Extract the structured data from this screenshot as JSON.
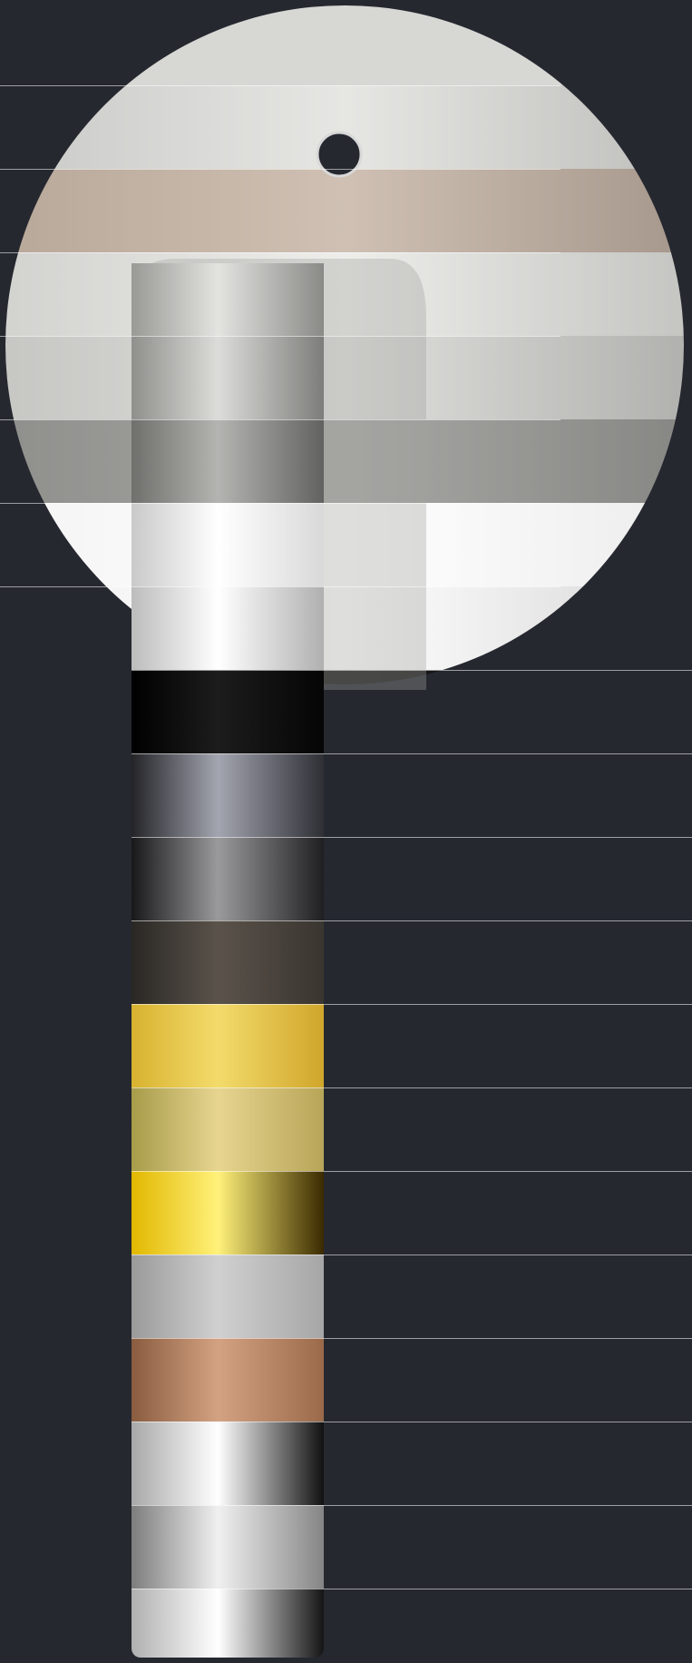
{
  "swatch_panel": {
    "background": "#262830",
    "divider_color": "#ffffff",
    "finishes": [
      {
        "key": "satin-stainless",
        "rosette_gradient": [
          "#c9c9c7",
          "#e6e6e3",
          "#bdbdba"
        ],
        "lever_gradient": [
          "#8e8e8c",
          "#d6d6d3",
          "#7a7a78"
        ]
      },
      {
        "key": "champagne-satin",
        "rosette_gradient": [
          "#b8a899",
          "#cfc0b3",
          "#a5978b"
        ],
        "lever_gradient": [
          "#a99a8d",
          "#d7c9bc",
          "#958a80"
        ]
      },
      {
        "key": "brushed-nickel",
        "rosette_gradient": [
          "#d2d2cf",
          "#ededea",
          "#c4c4c1"
        ],
        "lever_gradient": [
          "#999996",
          "#e3e3e0",
          "#8a8a87"
        ]
      },
      {
        "key": "satin-nickel",
        "rosette_gradient": [
          "#c6c6c3",
          "#e0e0dd",
          "#b0b0ad"
        ],
        "lever_gradient": [
          "#8f8f8c",
          "#dcdcd9",
          "#7d7d7a"
        ]
      },
      {
        "key": "dark-grey-matte",
        "rosette_gradient": [
          "#8f8f8c",
          "#a7a7a4",
          "#868683"
        ],
        "lever_gradient": [
          "#6f6f6c",
          "#b4b4b1",
          "#626260"
        ]
      },
      {
        "key": "white",
        "rosette_gradient": [
          "#f4f4f4",
          "#ffffff",
          "#ececec"
        ],
        "lever_gradient": [
          "#c9c9c9",
          "#ffffff",
          "#d9d9d9"
        ]
      },
      {
        "key": "polished-chrome",
        "rosette_gradient": [
          "#f0f0f0",
          "#ffffff",
          "#d6d6d6"
        ],
        "lever_gradient": [
          "#bcbcbc",
          "#ffffff",
          "#b0b0b0"
        ]
      },
      {
        "key": "black",
        "rosette_gradient": [
          "#050505",
          "#1a1a1a",
          "#0a0a0a"
        ],
        "lever_gradient": [
          "#000000",
          "#1c1c1c",
          "#050505"
        ]
      },
      {
        "key": "graphite",
        "rosette_gradient": [],
        "lever_gradient": [
          "#242428",
          "#a3a5b0",
          "#2e2f35"
        ]
      },
      {
        "key": "black-chrome",
        "rosette_gradient": [],
        "lever_gradient": [
          "#18181a",
          "#9a9a9c",
          "#1f1f21"
        ]
      },
      {
        "key": "dark-bronze",
        "rosette_gradient": [],
        "lever_gradient": [
          "#2a2724",
          "#5a534b",
          "#3a3530"
        ]
      },
      {
        "key": "polished-gold",
        "rosette_gradient": [],
        "lever_gradient": [
          "#d8b22f",
          "#f3db6b",
          "#d0a62b"
        ]
      },
      {
        "key": "satin-brass",
        "rosette_gradient": [],
        "lever_gradient": [
          "#a79c4a",
          "#e7d590",
          "#b8a558"
        ]
      },
      {
        "key": "gold-chrome",
        "rosette_gradient": [],
        "lever_gradient": [
          "#e2b800",
          "#fff17a",
          "#3a2a00"
        ]
      },
      {
        "key": "silver-grey",
        "rosette_gradient": [],
        "lever_gradient": [
          "#9a9a9a",
          "#d0d0d0",
          "#a6a6a6"
        ]
      },
      {
        "key": "copper",
        "rosette_gradient": [],
        "lever_gradient": [
          "#8a5c3f",
          "#d3a282",
          "#9a6a4a"
        ]
      },
      {
        "key": "mirror-chrome",
        "rosette_gradient": [],
        "lever_gradient": [
          "#a8a8a8",
          "#ffffff",
          "#111111"
        ]
      },
      {
        "key": "brushed-chrome",
        "rosette_gradient": [],
        "lever_gradient": [
          "#7d7d7d",
          "#f0f0f0",
          "#858585"
        ]
      },
      {
        "key": "polished-stainless",
        "rosette_gradient": [],
        "lever_gradient": [
          "#b0b0b0",
          "#ffffff",
          "#151515"
        ]
      },
      {
        "key": "brass-polished",
        "rosette_gradient": [],
        "lever_gradient": [
          "#d7a800",
          "#ffe44d",
          "#4a3400"
        ]
      }
    ]
  }
}
